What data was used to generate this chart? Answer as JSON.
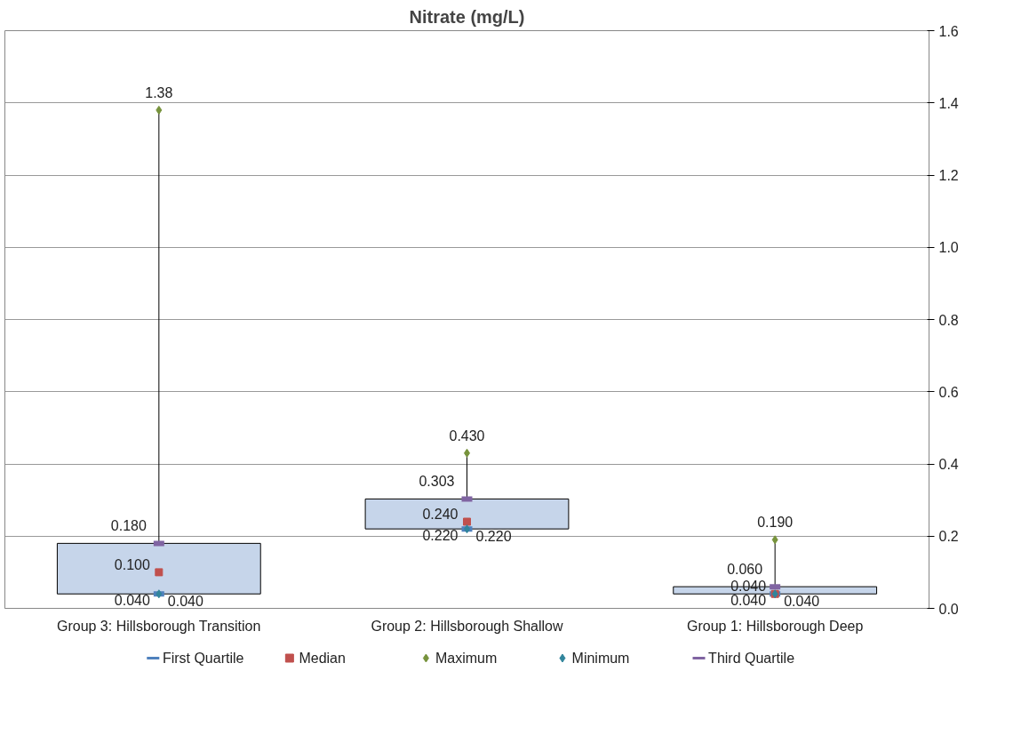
{
  "chart_data": {
    "type": "box",
    "title": "Nitrate (mg/L)",
    "categories": [
      "Group 3: Hillsborough Transition",
      "Group 2: Hillsborough Shallow",
      "Group 1: Hillsborough Deep"
    ],
    "boxes": [
      {
        "low": 0.04,
        "q1": 0.04,
        "q3": 0.18,
        "high": 1.38
      },
      {
        "low": 0.22,
        "q1": 0.22,
        "q3": 0.303,
        "high": 0.43
      },
      {
        "low": 0.04,
        "q1": 0.04,
        "q3": 0.06,
        "high": 0.19
      }
    ],
    "color": "#c6d5ea",
    "series": [
      {
        "name": "First Quartile",
        "type": "scatter",
        "color": "#4f81bd",
        "values": [
          0.04,
          0.22,
          0.04
        ],
        "value_labels": [
          "0.040",
          "0.220",
          "0.040"
        ]
      },
      {
        "name": "Median",
        "type": "scatter",
        "color": "#c0504d",
        "marker": "square",
        "values": [
          0.1,
          0.24,
          0.04
        ],
        "value_labels": [
          "0.100",
          "0.240",
          "0.040"
        ]
      },
      {
        "name": "Maximum",
        "type": "scatter",
        "color": "#77933c",
        "marker": "diamond",
        "values": [
          1.38,
          0.43,
          0.19
        ],
        "value_labels": [
          "1.38",
          "0.430",
          "0.190"
        ]
      },
      {
        "name": "Minimum",
        "type": "scatter",
        "color": "#31859c",
        "marker": "diamond",
        "values": [
          0.04,
          0.22,
          0.04
        ],
        "value_labels": [
          "0.040",
          "0.220",
          "0.040"
        ]
      },
      {
        "name": "Third Quartile",
        "type": "scatter",
        "color": "#8064a2",
        "values": [
          0.18,
          0.303,
          0.06
        ],
        "value_labels": [
          "0.180",
          "0.303",
          "0.060"
        ]
      }
    ],
    "ylim": [
      0,
      1.6
    ],
    "yticks": [
      {
        "value": 0,
        "label": "0.0"
      },
      {
        "value": 0.2,
        "label": "0.2"
      },
      {
        "value": 0.4,
        "label": "0.4"
      },
      {
        "value": 0.6,
        "label": "0.6"
      },
      {
        "value": 0.8,
        "label": "0.8"
      },
      {
        "value": 1.0,
        "label": "1.0"
      },
      {
        "value": 1.2,
        "label": "1.2"
      },
      {
        "value": 1.4,
        "label": "1.4"
      },
      {
        "value": 1.6,
        "label": "1.6"
      }
    ],
    "grid": "y",
    "legend": "bottom"
  }
}
